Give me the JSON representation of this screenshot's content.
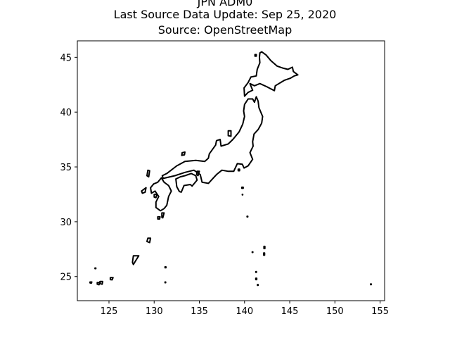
{
  "title": {
    "line1": "JPN ADM0",
    "line2": "Last Source Data Update: Sep 25, 2020",
    "line3": "Source: OpenStreetMap"
  },
  "chart_data": {
    "type": "map",
    "title": "JPN ADM0 / Last Source Data Update: Sep 25, 2020 / Source: OpenStreetMap",
    "xlim": [
      121.5,
      155.5
    ],
    "ylim": [
      22.8,
      46.5
    ],
    "xticks": [
      125,
      130,
      135,
      140,
      145,
      150,
      155
    ],
    "yticks": [
      25,
      30,
      35,
      40,
      45
    ],
    "line_color": "#000000",
    "features": [
      {
        "name": "Hokkaido",
        "closed": true,
        "coords": [
          [
            141.7,
            45.4
          ],
          [
            141.9,
            45.5
          ],
          [
            142.4,
            45.2
          ],
          [
            142.9,
            44.7
          ],
          [
            143.6,
            44.2
          ],
          [
            144.3,
            44.0
          ],
          [
            144.8,
            43.9
          ],
          [
            145.3,
            44.1
          ],
          [
            145.4,
            43.7
          ],
          [
            145.9,
            43.4
          ],
          [
            145.5,
            43.3
          ],
          [
            145.1,
            43.1
          ],
          [
            144.4,
            42.9
          ],
          [
            143.4,
            42.4
          ],
          [
            143.3,
            41.95
          ],
          [
            142.5,
            42.3
          ],
          [
            141.7,
            42.6
          ],
          [
            141.1,
            42.4
          ],
          [
            140.6,
            42.6
          ],
          [
            140.9,
            42.0
          ],
          [
            140.4,
            41.8
          ],
          [
            140.0,
            41.45
          ],
          [
            139.95,
            42.2
          ],
          [
            140.4,
            42.7
          ],
          [
            140.7,
            43.2
          ],
          [
            141.3,
            43.3
          ],
          [
            141.4,
            43.9
          ],
          [
            141.7,
            44.5
          ],
          [
            141.65,
            45.0
          ]
        ]
      },
      {
        "name": "Honshu",
        "closed": true,
        "coords": [
          [
            141.3,
            41.4
          ],
          [
            141.5,
            41.0
          ],
          [
            141.6,
            40.4
          ],
          [
            142.0,
            39.6
          ],
          [
            141.9,
            39.0
          ],
          [
            141.5,
            38.4
          ],
          [
            141.05,
            38.0
          ],
          [
            140.9,
            37.3
          ],
          [
            140.95,
            36.9
          ],
          [
            140.6,
            36.3
          ],
          [
            140.9,
            35.7
          ],
          [
            140.4,
            35.1
          ],
          [
            139.95,
            34.9
          ],
          [
            139.75,
            35.25
          ],
          [
            139.2,
            35.3
          ],
          [
            138.8,
            34.6
          ],
          [
            138.2,
            34.6
          ],
          [
            137.5,
            34.7
          ],
          [
            136.9,
            34.3
          ],
          [
            136.0,
            33.5
          ],
          [
            135.3,
            33.6
          ],
          [
            135.1,
            34.3
          ],
          [
            134.4,
            34.7
          ],
          [
            133.4,
            34.5
          ],
          [
            132.3,
            34.2
          ],
          [
            131.0,
            33.95
          ],
          [
            130.9,
            34.2
          ],
          [
            131.4,
            34.4
          ],
          [
            132.5,
            35.1
          ],
          [
            133.4,
            35.5
          ],
          [
            134.6,
            35.6
          ],
          [
            135.6,
            35.5
          ],
          [
            136.0,
            35.8
          ],
          [
            136.1,
            36.2
          ],
          [
            136.8,
            37.0
          ],
          [
            136.9,
            37.4
          ],
          [
            137.3,
            37.5
          ],
          [
            137.4,
            36.9
          ],
          [
            138.2,
            37.1
          ],
          [
            138.7,
            37.5
          ],
          [
            139.4,
            38.2
          ],
          [
            139.8,
            38.9
          ],
          [
            140.0,
            39.6
          ],
          [
            139.9,
            40.1
          ],
          [
            140.0,
            40.7
          ],
          [
            140.4,
            41.2
          ],
          [
            140.9,
            41.2
          ],
          [
            141.1,
            40.9
          ]
        ]
      },
      {
        "name": "Shikoku",
        "closed": true,
        "coords": [
          [
            132.5,
            33.2
          ],
          [
            132.8,
            32.75
          ],
          [
            133.0,
            32.7
          ],
          [
            133.3,
            33.3
          ],
          [
            134.0,
            33.4
          ],
          [
            134.2,
            33.25
          ],
          [
            134.75,
            33.8
          ],
          [
            134.6,
            34.2
          ],
          [
            134.1,
            34.4
          ],
          [
            133.4,
            34.2
          ],
          [
            132.9,
            34.1
          ],
          [
            132.4,
            33.9
          ]
        ]
      },
      {
        "name": "Kyushu",
        "closed": true,
        "coords": [
          [
            130.8,
            34.0
          ],
          [
            131.1,
            33.6
          ],
          [
            131.6,
            33.3
          ],
          [
            131.9,
            32.8
          ],
          [
            131.6,
            32.3
          ],
          [
            131.4,
            31.5
          ],
          [
            131.1,
            31.2
          ],
          [
            130.7,
            31.0
          ],
          [
            130.2,
            31.3
          ],
          [
            130.2,
            31.8
          ],
          [
            130.5,
            32.3
          ],
          [
            130.1,
            32.8
          ],
          [
            129.7,
            32.6
          ],
          [
            129.6,
            33.1
          ],
          [
            129.95,
            33.45
          ],
          [
            130.4,
            33.6
          ]
        ]
      },
      {
        "name": "Sado",
        "closed": true,
        "coords": [
          [
            138.2,
            38.3
          ],
          [
            138.5,
            38.3
          ],
          [
            138.5,
            37.8
          ],
          [
            138.2,
            37.85
          ]
        ]
      },
      {
        "name": "Oki",
        "closed": true,
        "coords": [
          [
            133.1,
            36.3
          ],
          [
            133.4,
            36.35
          ],
          [
            133.35,
            36.1
          ],
          [
            133.05,
            36.05
          ]
        ]
      },
      {
        "name": "Tsushima",
        "closed": true,
        "coords": [
          [
            129.3,
            34.7
          ],
          [
            129.5,
            34.65
          ],
          [
            129.4,
            34.1
          ],
          [
            129.2,
            34.2
          ]
        ]
      },
      {
        "name": "Goto",
        "closed": true,
        "coords": [
          [
            128.6,
            32.8
          ],
          [
            129.1,
            33.1
          ],
          [
            129.0,
            32.7
          ],
          [
            128.7,
            32.6
          ]
        ]
      },
      {
        "name": "Amakusa",
        "closed": true,
        "coords": [
          [
            130.0,
            32.5
          ],
          [
            130.3,
            32.5
          ],
          [
            130.2,
            32.2
          ],
          [
            130.0,
            32.25
          ]
        ]
      },
      {
        "name": "Awaji",
        "closed": true,
        "coords": [
          [
            134.75,
            34.6
          ],
          [
            135.0,
            34.6
          ],
          [
            134.85,
            34.2
          ],
          [
            134.7,
            34.3
          ]
        ]
      },
      {
        "name": "Tanegashima",
        "closed": true,
        "coords": [
          [
            130.85,
            30.8
          ],
          [
            131.1,
            30.8
          ],
          [
            130.95,
            30.35
          ],
          [
            130.85,
            30.4
          ]
        ]
      },
      {
        "name": "Yakushima",
        "closed": true,
        "coords": [
          [
            130.4,
            30.45
          ],
          [
            130.65,
            30.45
          ],
          [
            130.6,
            30.25
          ],
          [
            130.4,
            30.25
          ]
        ]
      },
      {
        "name": "Amami",
        "closed": true,
        "coords": [
          [
            129.3,
            28.5
          ],
          [
            129.6,
            28.5
          ],
          [
            129.5,
            28.1
          ],
          [
            129.2,
            28.2
          ]
        ]
      },
      {
        "name": "Okinawa",
        "closed": true,
        "coords": [
          [
            127.7,
            26.9
          ],
          [
            128.3,
            26.9
          ],
          [
            128.0,
            26.5
          ],
          [
            127.7,
            26.1
          ],
          [
            127.6,
            26.3
          ]
        ]
      },
      {
        "name": "Miyako",
        "closed": true,
        "coords": [
          [
            125.15,
            24.9
          ],
          [
            125.45,
            24.9
          ],
          [
            125.35,
            24.7
          ],
          [
            125.15,
            24.72
          ]
        ]
      },
      {
        "name": "Ishigaki",
        "closed": true,
        "coords": [
          [
            124.0,
            24.55
          ],
          [
            124.3,
            24.55
          ],
          [
            124.25,
            24.3
          ],
          [
            124.05,
            24.35
          ]
        ]
      },
      {
        "name": "Iriomote",
        "closed": true,
        "coords": [
          [
            123.7,
            24.45
          ],
          [
            123.95,
            24.45
          ],
          [
            123.9,
            24.25
          ],
          [
            123.7,
            24.3
          ]
        ]
      },
      {
        "name": "Yonaguni",
        "closed": true,
        "coords": [
          [
            122.9,
            24.5
          ],
          [
            123.1,
            24.5
          ],
          [
            123.05,
            24.4
          ],
          [
            122.9,
            24.42
          ]
        ]
      },
      {
        "name": "Rishiri",
        "closed": true,
        "coords": [
          [
            141.15,
            45.25
          ],
          [
            141.3,
            45.25
          ],
          [
            141.3,
            45.1
          ],
          [
            141.15,
            45.1
          ]
        ]
      },
      {
        "name": "Izu-Oshima",
        "closed": true,
        "coords": [
          [
            139.3,
            34.8
          ],
          [
            139.45,
            34.8
          ],
          [
            139.45,
            34.65
          ],
          [
            139.3,
            34.65
          ]
        ]
      },
      {
        "name": "Hachijojima",
        "closed": true,
        "coords": [
          [
            139.7,
            33.15
          ],
          [
            139.85,
            33.15
          ],
          [
            139.85,
            33.05
          ],
          [
            139.7,
            33.05
          ]
        ]
      },
      {
        "name": "Aogashima",
        "closed": true,
        "coords": [
          [
            139.75,
            32.5
          ],
          [
            139.8,
            32.5
          ],
          [
            139.8,
            32.45
          ],
          [
            139.75,
            32.45
          ]
        ]
      },
      {
        "name": "Torishima",
        "closed": true,
        "coords": [
          [
            140.28,
            30.5
          ],
          [
            140.36,
            30.5
          ],
          [
            140.36,
            30.44
          ],
          [
            140.28,
            30.44
          ]
        ]
      },
      {
        "name": "Chichijima",
        "closed": true,
        "coords": [
          [
            142.15,
            27.75
          ],
          [
            142.25,
            27.75
          ],
          [
            142.25,
            27.55
          ],
          [
            142.15,
            27.55
          ]
        ]
      },
      {
        "name": "Hahajima",
        "closed": true,
        "coords": [
          [
            142.12,
            27.15
          ],
          [
            142.22,
            27.15
          ],
          [
            142.22,
            26.95
          ],
          [
            142.12,
            26.95
          ]
        ]
      },
      {
        "name": "Nishinoshima",
        "closed": true,
        "coords": [
          [
            140.85,
            27.25
          ],
          [
            140.92,
            27.25
          ],
          [
            140.92,
            27.2
          ],
          [
            140.85,
            27.2
          ]
        ]
      },
      {
        "name": "Kita-Iwo-jima",
        "closed": true,
        "coords": [
          [
            141.25,
            25.45
          ],
          [
            141.32,
            25.45
          ],
          [
            141.32,
            25.38
          ],
          [
            141.25,
            25.38
          ]
        ]
      },
      {
        "name": "Iwo Jima",
        "closed": true,
        "coords": [
          [
            141.25,
            24.85
          ],
          [
            141.35,
            24.85
          ],
          [
            141.35,
            24.72
          ],
          [
            141.25,
            24.72
          ]
        ]
      },
      {
        "name": "Minami-Iwo-jima",
        "closed": true,
        "coords": [
          [
            141.43,
            24.27
          ],
          [
            141.5,
            24.27
          ],
          [
            141.5,
            24.2
          ],
          [
            141.43,
            24.2
          ]
        ]
      },
      {
        "name": "Okinotorishima",
        "closed": true,
        "coords": [
          [
            136.05,
            20.45
          ],
          [
            136.12,
            20.45
          ],
          [
            136.12,
            20.4
          ],
          [
            136.05,
            20.4
          ]
        ]
      },
      {
        "name": "Minamitorishima",
        "closed": true,
        "coords": [
          [
            153.95,
            24.32
          ],
          [
            154.02,
            24.32
          ],
          [
            154.02,
            24.26
          ],
          [
            153.95,
            24.26
          ]
        ]
      },
      {
        "name": "Daito",
        "closed": true,
        "coords": [
          [
            131.2,
            25.88
          ],
          [
            131.3,
            25.88
          ],
          [
            131.3,
            25.8
          ],
          [
            131.2,
            25.8
          ]
        ]
      },
      {
        "name": "Oki-Daito",
        "closed": true,
        "coords": [
          [
            131.2,
            24.5
          ],
          [
            131.27,
            24.5
          ],
          [
            131.27,
            24.44
          ],
          [
            131.2,
            24.44
          ]
        ]
      },
      {
        "name": "Senkaku",
        "closed": true,
        "coords": [
          [
            123.45,
            25.78
          ],
          [
            123.55,
            25.78
          ],
          [
            123.55,
            25.72
          ],
          [
            123.45,
            25.72
          ]
        ]
      }
    ]
  }
}
